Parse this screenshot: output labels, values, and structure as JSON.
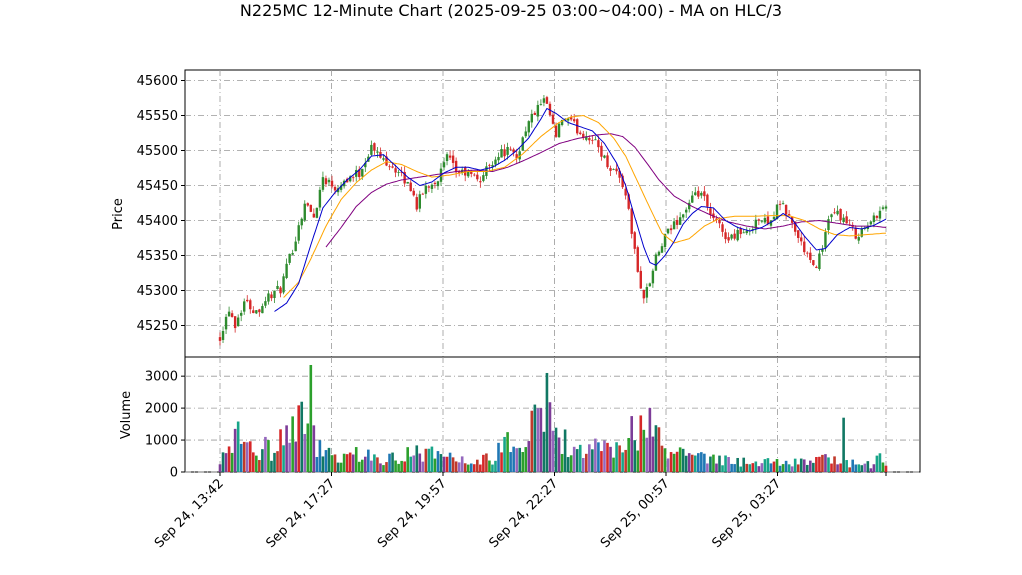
{
  "chart_data": {
    "type": "candlestick",
    "title": "N225MC 12-Minute Chart (2025-09-25 03:00~04:00) - MA on HLC/3",
    "price_panel": {
      "ylabel": "Price",
      "ylim": [
        45205,
        45615
      ],
      "yticks": [
        45250,
        45300,
        45350,
        45400,
        45450,
        45500,
        45550,
        45600
      ],
      "grid": true
    },
    "volume_panel": {
      "ylabel": "Volume",
      "ylim": [
        0,
        3600
      ],
      "yticks": [
        0,
        1000,
        2000,
        3000
      ],
      "grid": true
    },
    "x_tick_labels": [
      "Sep 24, 13:42",
      "Sep 24, 17:27",
      "Sep 24, 19:57",
      "Sep 24, 22:27",
      "Sep 25, 00:57",
      "Sep 25, 03:27"
    ],
    "colors": {
      "up": "#2e8b2e",
      "down": "#d62728",
      "ma_fast": "#0000cc",
      "ma_mid": "#ffa500",
      "ma_slow": "#800080"
    },
    "price_path": [
      [
        0,
        45235
      ],
      [
        3,
        45275
      ],
      [
        5,
        45252
      ],
      [
        8,
        45285
      ],
      [
        12,
        45270
      ],
      [
        16,
        45292
      ],
      [
        20,
        45302
      ],
      [
        25,
        45375
      ],
      [
        28,
        45425
      ],
      [
        31,
        45405
      ],
      [
        34,
        45462
      ],
      [
        38,
        45448
      ],
      [
        42,
        45460
      ],
      [
        46,
        45468
      ],
      [
        50,
        45505
      ],
      [
        53,
        45490
      ],
      [
        56,
        45482
      ],
      [
        60,
        45462
      ],
      [
        63,
        45447
      ],
      [
        65,
        45422
      ],
      [
        68,
        45448
      ],
      [
        72,
        45460
      ],
      [
        75,
        45490
      ],
      [
        78,
        45470
      ],
      [
        82,
        45466
      ],
      [
        86,
        45458
      ],
      [
        89,
        45480
      ],
      [
        92,
        45495
      ],
      [
        95,
        45500
      ],
      [
        98,
        45490
      ],
      [
        101,
        45532
      ],
      [
        104,
        45555
      ],
      [
        107,
        45570
      ],
      [
        109,
        45550
      ],
      [
        111,
        45518
      ],
      [
        113,
        45545
      ],
      [
        116,
        45540
      ],
      [
        119,
        45525
      ],
      [
        122,
        45520
      ],
      [
        125,
        45505
      ],
      [
        128,
        45480
      ],
      [
        131,
        45470
      ],
      [
        134,
        45440
      ],
      [
        136,
        45385
      ],
      [
        138,
        45325
      ],
      [
        140,
        45290
      ],
      [
        142,
        45312
      ],
      [
        144,
        45345
      ],
      [
        147,
        45375
      ],
      [
        150,
        45395
      ],
      [
        153,
        45410
      ],
      [
        156,
        45430
      ],
      [
        159,
        45440
      ],
      [
        162,
        45405
      ],
      [
        165,
        45392
      ],
      [
        168,
        45372
      ],
      [
        171,
        45385
      ],
      [
        174,
        45380
      ],
      [
        177,
        45402
      ],
      [
        180,
        45398
      ],
      [
        183,
        45408
      ],
      [
        185,
        45425
      ],
      [
        188,
        45405
      ],
      [
        191,
        45375
      ],
      [
        194,
        45350
      ],
      [
        196,
        45330
      ],
      [
        198,
        45348
      ],
      [
        201,
        45398
      ],
      [
        204,
        45412
      ],
      [
        207,
        45395
      ],
      [
        210,
        45380
      ],
      [
        213,
        45388
      ],
      [
        216,
        45402
      ],
      [
        218,
        45418
      ],
      [
        220,
        45420
      ]
    ],
    "ma_fast_path": [
      [
        18,
        45270
      ],
      [
        22,
        45282
      ],
      [
        26,
        45310
      ],
      [
        30,
        45365
      ],
      [
        34,
        45418
      ],
      [
        38,
        45440
      ],
      [
        42,
        45458
      ],
      [
        46,
        45472
      ],
      [
        50,
        45492
      ],
      [
        54,
        45494
      ],
      [
        58,
        45478
      ],
      [
        62,
        45462
      ],
      [
        66,
        45450
      ],
      [
        70,
        45455
      ],
      [
        74,
        45468
      ],
      [
        78,
        45476
      ],
      [
        82,
        45476
      ],
      [
        86,
        45472
      ],
      [
        90,
        45476
      ],
      [
        94,
        45486
      ],
      [
        98,
        45500
      ],
      [
        102,
        45518
      ],
      [
        106,
        45545
      ],
      [
        108,
        45560
      ],
      [
        111,
        45553
      ],
      [
        115,
        45540
      ],
      [
        119,
        45534
      ],
      [
        123,
        45528
      ],
      [
        127,
        45510
      ],
      [
        131,
        45482
      ],
      [
        134,
        45450
      ],
      [
        137,
        45405
      ],
      [
        140,
        45362
      ],
      [
        142,
        45340
      ],
      [
        144,
        45336
      ],
      [
        147,
        45350
      ],
      [
        150,
        45370
      ],
      [
        153,
        45395
      ],
      [
        156,
        45410
      ],
      [
        159,
        45420
      ],
      [
        163,
        45418
      ],
      [
        167,
        45400
      ],
      [
        171,
        45390
      ],
      [
        175,
        45385
      ],
      [
        179,
        45390
      ],
      [
        183,
        45400
      ],
      [
        186,
        45410
      ],
      [
        189,
        45402
      ],
      [
        193,
        45378
      ],
      [
        197,
        45358
      ],
      [
        200,
        45360
      ],
      [
        204,
        45380
      ],
      [
        208,
        45390
      ],
      [
        212,
        45388
      ],
      [
        216,
        45393
      ],
      [
        220,
        45402
      ]
    ],
    "ma_mid_path": [
      [
        21,
        45290
      ],
      [
        26,
        45312
      ],
      [
        30,
        45345
      ],
      [
        35,
        45392
      ],
      [
        40,
        45430
      ],
      [
        45,
        45454
      ],
      [
        50,
        45472
      ],
      [
        55,
        45484
      ],
      [
        60,
        45480
      ],
      [
        65,
        45470
      ],
      [
        70,
        45462
      ],
      [
        76,
        45465
      ],
      [
        82,
        45470
      ],
      [
        88,
        45470
      ],
      [
        94,
        45476
      ],
      [
        100,
        45495
      ],
      [
        106,
        45520
      ],
      [
        112,
        45540
      ],
      [
        116,
        45548
      ],
      [
        120,
        45550
      ],
      [
        125,
        45540
      ],
      [
        130,
        45518
      ],
      [
        134,
        45492
      ],
      [
        138,
        45455
      ],
      [
        142,
        45418
      ],
      [
        146,
        45382
      ],
      [
        150,
        45368
      ],
      [
        155,
        45374
      ],
      [
        160,
        45392
      ],
      [
        165,
        45403
      ],
      [
        170,
        45406
      ],
      [
        176,
        45406
      ],
      [
        182,
        45407
      ],
      [
        188,
        45407
      ],
      [
        193,
        45400
      ],
      [
        198,
        45388
      ],
      [
        203,
        45380
      ],
      [
        208,
        45378
      ],
      [
        214,
        45380
      ],
      [
        220,
        45382
      ]
    ],
    "ma_slow_path": [
      [
        35,
        45362
      ],
      [
        40,
        45390
      ],
      [
        45,
        45420
      ],
      [
        50,
        45440
      ],
      [
        55,
        45452
      ],
      [
        60,
        45458
      ],
      [
        66,
        45462
      ],
      [
        72,
        45466
      ],
      [
        78,
        45470
      ],
      [
        84,
        45472
      ],
      [
        90,
        45470
      ],
      [
        95,
        45476
      ],
      [
        100,
        45485
      ],
      [
        106,
        45497
      ],
      [
        112,
        45510
      ],
      [
        118,
        45517
      ],
      [
        124,
        45522
      ],
      [
        129,
        45524
      ],
      [
        133,
        45520
      ],
      [
        137,
        45505
      ],
      [
        141,
        45482
      ],
      [
        145,
        45458
      ],
      [
        150,
        45435
      ],
      [
        156,
        45420
      ],
      [
        162,
        45408
      ],
      [
        168,
        45398
      ],
      [
        174,
        45392
      ],
      [
        180,
        45388
      ],
      [
        186,
        45392
      ],
      [
        192,
        45398
      ],
      [
        198,
        45400
      ],
      [
        204,
        45396
      ],
      [
        210,
        45392
      ],
      [
        216,
        45392
      ],
      [
        220,
        45390
      ]
    ],
    "volume_path": [
      [
        0,
        300
      ],
      [
        3,
        900
      ],
      [
        6,
        1200
      ],
      [
        9,
        800
      ],
      [
        12,
        600
      ],
      [
        15,
        900
      ],
      [
        18,
        500
      ],
      [
        20,
        1100
      ],
      [
        23,
        1800
      ],
      [
        25,
        1300
      ],
      [
        27,
        2000
      ],
      [
        29,
        1500
      ],
      [
        30,
        3300
      ],
      [
        32,
        900
      ],
      [
        34,
        700
      ],
      [
        36,
        600
      ],
      [
        40,
        400
      ],
      [
        45,
        700
      ],
      [
        50,
        500
      ],
      [
        55,
        400
      ],
      [
        60,
        600
      ],
      [
        65,
        800
      ],
      [
        70,
        600
      ],
      [
        75,
        500
      ],
      [
        80,
        450
      ],
      [
        85,
        400
      ],
      [
        90,
        500
      ],
      [
        93,
        800
      ],
      [
        95,
        1200
      ],
      [
        98,
        900
      ],
      [
        100,
        1000
      ],
      [
        104,
        1600
      ],
      [
        106,
        1800
      ],
      [
        108,
        3100
      ],
      [
        110,
        2100
      ],
      [
        112,
        1200
      ],
      [
        116,
        800
      ],
      [
        120,
        700
      ],
      [
        125,
        800
      ],
      [
        130,
        700
      ],
      [
        134,
        900
      ],
      [
        136,
        1700
      ],
      [
        140,
        1200
      ],
      [
        142,
        1600
      ],
      [
        145,
        900
      ],
      [
        148,
        600
      ],
      [
        152,
        900
      ],
      [
        156,
        700
      ],
      [
        160,
        500
      ],
      [
        165,
        450
      ],
      [
        170,
        400
      ],
      [
        175,
        300
      ],
      [
        180,
        350
      ],
      [
        185,
        300
      ],
      [
        190,
        350
      ],
      [
        195,
        300
      ],
      [
        200,
        500
      ],
      [
        205,
        350
      ],
      [
        210,
        300
      ],
      [
        215,
        250
      ],
      [
        218,
        450
      ],
      [
        220,
        300
      ]
    ],
    "volume_spikes": [
      [
        30,
        3350
      ],
      [
        108,
        3100
      ],
      [
        206,
        1700
      ],
      [
        27,
        2200
      ],
      [
        106,
        2000
      ],
      [
        136,
        1750
      ],
      [
        145,
        1400
      ]
    ]
  }
}
